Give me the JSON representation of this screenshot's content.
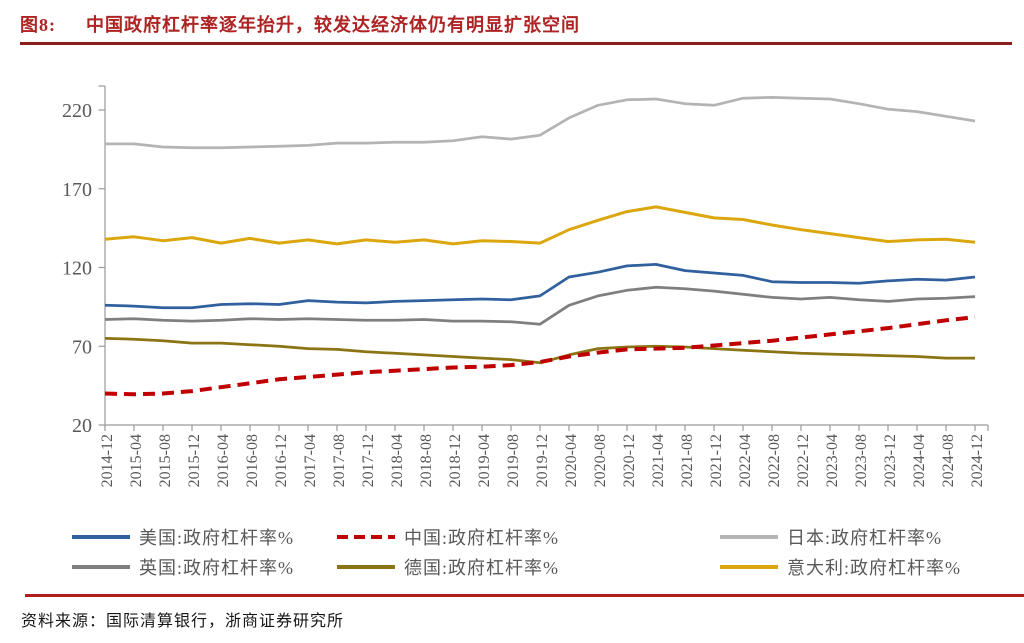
{
  "header": {
    "figure_label": "图8:",
    "title": "中国政府杠杆率逐年抬升，较发达经济体仍有明显扩张空间"
  },
  "footer": {
    "source": "资料来源：国际清算银行，浙商证券研究所"
  },
  "colors": {
    "title_red": "#ae2323",
    "divider_top": "#8c1d1d",
    "divider_bottom": "#b01e1e",
    "axis": "#9a9a9a",
    "tick_text": "#595959",
    "legend_text": "#595959"
  },
  "chart_data": {
    "type": "line",
    "title": "",
    "xlabel": "",
    "ylabel": "",
    "grid": false,
    "legend_position": "bottom",
    "ylim": [
      20,
      235
    ],
    "yticks": [
      20,
      70,
      120,
      170,
      220
    ],
    "x": [
      "2014-12",
      "2015-04",
      "2015-08",
      "2015-12",
      "2016-04",
      "2016-08",
      "2016-12",
      "2017-04",
      "2017-08",
      "2017-12",
      "2018-04",
      "2018-08",
      "2018-12",
      "2019-04",
      "2019-08",
      "2019-12",
      "2020-04",
      "2020-08",
      "2020-12",
      "2021-04",
      "2021-08",
      "2021-12",
      "2022-04",
      "2022-08",
      "2022-12",
      "2023-04",
      "2023-08",
      "2023-12",
      "2024-04",
      "2024-08",
      "2024-12"
    ],
    "series": [
      {
        "name": "美国:政府杠杆率%",
        "color": "#31609f",
        "dash": false,
        "width": 2.75,
        "values": [
          96,
          95.5,
          94.5,
          94.5,
          96.5,
          97,
          96.5,
          99,
          98,
          97.5,
          98.5,
          99,
          99.5,
          100,
          99.5,
          102,
          114,
          117,
          121,
          122,
          118,
          116.5,
          115,
          111,
          110.5,
          110.5,
          110,
          111.5,
          112.5,
          112,
          114
        ]
      },
      {
        "name": "中国:政府杠杆率%",
        "color": "#c00000",
        "dash": true,
        "width": 4,
        "values": [
          40,
          39.5,
          40,
          41.5,
          44,
          46.5,
          49,
          50.5,
          52,
          53.5,
          54.5,
          55.5,
          56.5,
          57,
          58,
          60,
          63.5,
          66,
          68,
          68.5,
          69,
          70.5,
          72,
          73.5,
          75.5,
          77.5,
          79.5,
          81.5,
          84,
          86.5,
          88.5
        ]
      },
      {
        "name": "日本:政府杠杆率%",
        "color": "#b4b4b4",
        "dash": false,
        "width": 2.75,
        "values": [
          198.5,
          198.5,
          196.5,
          196,
          196,
          196.5,
          197,
          197.5,
          199,
          199,
          199.5,
          199.5,
          200.5,
          203,
          201.5,
          204,
          215,
          223,
          226.5,
          227,
          224,
          223,
          227.5,
          228,
          227.5,
          227,
          224,
          220.5,
          219,
          216,
          213
        ]
      },
      {
        "name": "英国:政府杠杆率%",
        "color": "#7f7f7f",
        "dash": false,
        "width": 2.75,
        "values": [
          87,
          87.5,
          86.5,
          86,
          86.5,
          87.5,
          87,
          87.5,
          87,
          86.5,
          86.5,
          87,
          86,
          86,
          85.5,
          84,
          96,
          102,
          105.5,
          107.5,
          106.5,
          105,
          103,
          101,
          100,
          101,
          99.5,
          98.5,
          100,
          100.5,
          101.5
        ]
      },
      {
        "name": "德国:政府杠杆率%",
        "color": "#8a7414",
        "dash": false,
        "width": 2.75,
        "values": [
          75,
          74.5,
          73.5,
          72,
          72,
          71,
          70,
          68.5,
          68,
          66.5,
          65.5,
          64.5,
          63.5,
          62.5,
          61.5,
          59.5,
          64.5,
          68.5,
          69.5,
          70,
          69.5,
          68.5,
          67.5,
          66.5,
          65.5,
          65,
          64.5,
          64,
          63.5,
          62.5,
          62.5
        ]
      },
      {
        "name": "意大利:政府杠杆率%",
        "color": "#dca70e",
        "dash": false,
        "width": 3,
        "values": [
          138,
          139.5,
          137,
          139,
          135.5,
          138.5,
          135.5,
          137.5,
          135,
          137.5,
          136,
          137.5,
          135,
          137,
          136.5,
          135.5,
          144,
          150,
          155.5,
          158.5,
          155,
          151.5,
          150.5,
          147,
          144,
          141.5,
          139,
          136.5,
          137.5,
          138,
          136
        ]
      }
    ],
    "draw_order": [
      2,
      5,
      3,
      4,
      0,
      1
    ],
    "legend_columns": [
      [
        0,
        3
      ],
      [
        1,
        4
      ],
      [
        2,
        5
      ]
    ]
  }
}
